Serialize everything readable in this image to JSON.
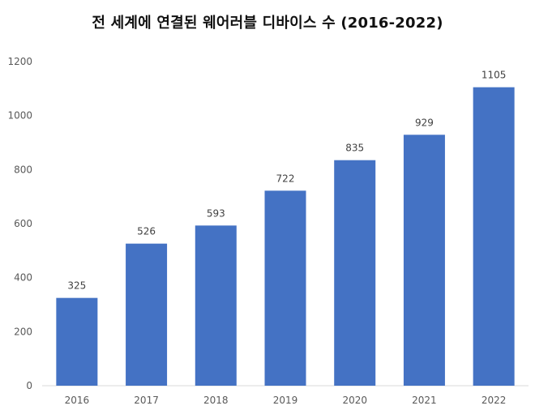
{
  "chart_data": {
    "type": "bar",
    "title": "전 세계에 연결된 웨어러블 디바이스 수 (2016-2022)",
    "categories": [
      "2016",
      "2017",
      "2018",
      "2019",
      "2020",
      "2021",
      "2022"
    ],
    "values": [
      325,
      526,
      593,
      722,
      835,
      929,
      1105
    ],
    "data_labels": [
      "325",
      "526",
      "593",
      "722",
      "835",
      "929",
      "1105"
    ],
    "xlabel": "",
    "ylabel": "",
    "ylim": [
      0,
      1200
    ],
    "yticks": [
      0,
      200,
      400,
      600,
      800,
      1000,
      1200
    ],
    "grid": false,
    "legend": "none",
    "bar_color": "#4472C4"
  }
}
